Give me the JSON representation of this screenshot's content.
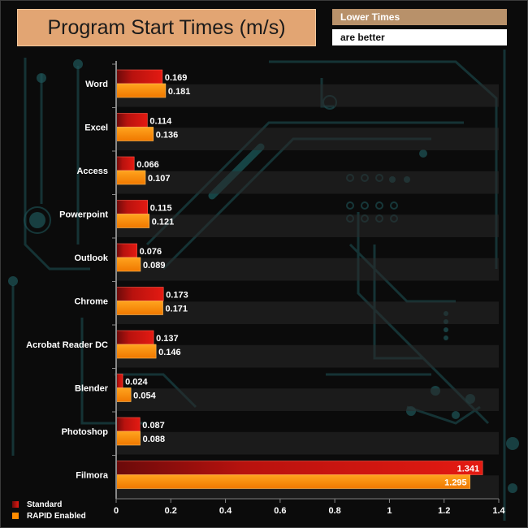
{
  "header": {
    "title": "Program Start Times (m/s)",
    "note_line1": "Lower Times",
    "note_line2": "are better"
  },
  "colors": {
    "standard": "#c8140f",
    "rapid": "#ff8c00",
    "title_bg": "#e2a573",
    "note_bg": "#b8916a"
  },
  "chart_data": {
    "type": "bar",
    "orientation": "horizontal",
    "title": "Program Start Times (m/s)",
    "categories": [
      "Word",
      "Excel",
      "Access",
      "Powerpoint",
      "Outlook",
      "Chrome",
      "Acrobat Reader DC",
      "Blender",
      "Photoshop",
      "Filmora"
    ],
    "series": [
      {
        "name": "Standard",
        "values": [
          0.169,
          0.114,
          0.066,
          0.115,
          0.076,
          0.173,
          0.137,
          0.024,
          0.087,
          1.341
        ]
      },
      {
        "name": "RAPID Enabled",
        "values": [
          0.181,
          0.136,
          0.107,
          0.121,
          0.089,
          0.171,
          0.146,
          0.054,
          0.088,
          1.295
        ]
      }
    ],
    "value_labels": [
      [
        "0.169",
        "0.114",
        "0.066",
        "0.115",
        "0.076",
        "0.173",
        "0.137",
        "0.024",
        "0.087",
        "1.341"
      ],
      [
        "0.181",
        "0.136",
        "0.107",
        "0.121",
        "0.089",
        "0.171",
        "0.146",
        "0.054",
        "0.088",
        "1.295"
      ]
    ],
    "xlim": [
      0,
      1.4
    ],
    "xticks": [
      "0",
      "0.2",
      "0.4",
      "0.6",
      "0.8",
      "1",
      "1.2",
      "1.4"
    ],
    "legend": "bottom-left"
  }
}
